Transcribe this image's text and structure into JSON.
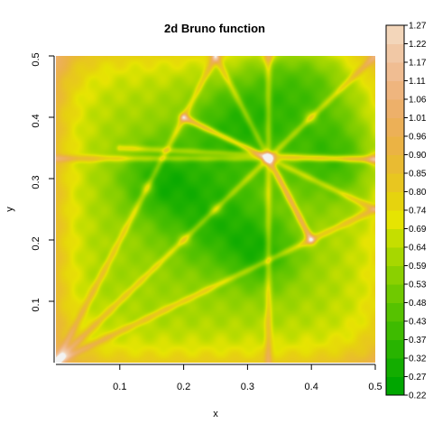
{
  "chart_data": {
    "type": "heatmap",
    "title": "2d Bruno function",
    "xlabel": "x",
    "ylabel": "y",
    "xlim": [
      0,
      0.5
    ],
    "ylim": [
      0,
      0.5
    ],
    "x_ticks": [
      0.1,
      0.2,
      0.3,
      0.4,
      0.5
    ],
    "x_tick_labels": [
      "0.1",
      "0.2",
      "0.3",
      "0.4",
      "0.5"
    ],
    "y_ticks": [
      0.1,
      0.2,
      0.3,
      0.4,
      0.5
    ],
    "y_tick_labels": [
      "0.1",
      "0.2",
      "0.3",
      "0.4",
      "0.5"
    ],
    "legend_placement": "right",
    "colorbar_levels": [
      0.22,
      0.27,
      0.32,
      0.37,
      0.43,
      0.48,
      0.53,
      0.59,
      0.64,
      0.69,
      0.74,
      0.8,
      0.85,
      0.9,
      0.96,
      1.01,
      1.06,
      1.11,
      1.17,
      1.22,
      1.27
    ],
    "colorbar_labels": [
      "0.22",
      "0.27",
      "0.32",
      "0.37",
      "0.43",
      "0.48",
      "0.53",
      "0.59",
      "0.64",
      "0.69",
      "0.74",
      "0.80",
      "0.85",
      "0.90",
      "0.96",
      "1.01",
      "1.06",
      "1.11",
      "1.17",
      "1.22",
      "1.27"
    ],
    "colorbar_colors": [
      "#00a600",
      "#13ad00",
      "#28b400",
      "#3ebb00",
      "#56c200",
      "#70c900",
      "#8bd000",
      "#a7d700",
      "#c5de00",
      "#e6e402",
      "#e6d30e",
      "#e8c620",
      "#e9bb32",
      "#ebb344",
      "#ecb057",
      "#edb06a",
      "#efb57e",
      "#f0bd92",
      "#f1c8a5",
      "#f3d6ba",
      "#f2f2f2"
    ],
    "grid": false
  }
}
